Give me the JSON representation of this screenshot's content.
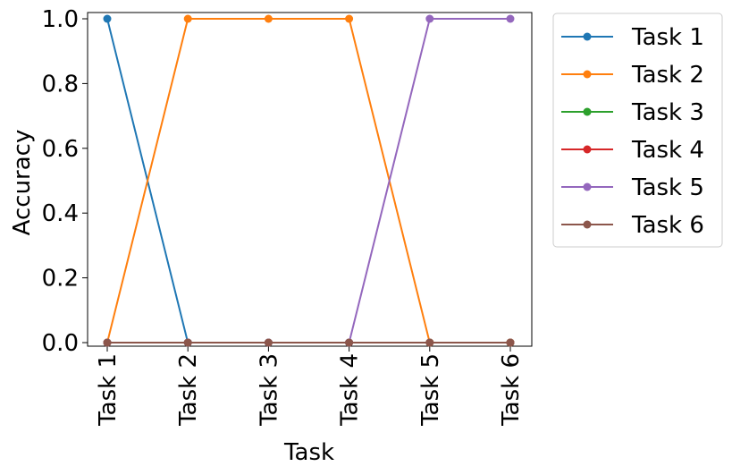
{
  "chart_data": {
    "type": "line",
    "title": "",
    "xlabel": "Task",
    "ylabel": "Accuracy",
    "categories": [
      "Task 1",
      "Task 2",
      "Task 3",
      "Task 4",
      "Task 5",
      "Task 6"
    ],
    "yticks": [
      "0.0",
      "0.2",
      "0.4",
      "0.6",
      "0.8",
      "1.0"
    ],
    "ylim": [
      0,
      1
    ],
    "grid": false,
    "legend_position": "outside-top-right",
    "series": [
      {
        "name": "Task 1",
        "color": "#1f77b4",
        "values": [
          1.0,
          0.0,
          0.0,
          0.0,
          0.0,
          0.0
        ]
      },
      {
        "name": "Task 2",
        "color": "#ff7f0e",
        "values": [
          0.0,
          1.0,
          1.0,
          1.0,
          0.0,
          0.0
        ]
      },
      {
        "name": "Task 3",
        "color": "#2ca02c",
        "values": [
          0.0,
          0.0,
          0.0,
          0.0,
          0.0,
          0.0
        ]
      },
      {
        "name": "Task 4",
        "color": "#d62728",
        "values": [
          0.0,
          0.0,
          0.0,
          0.0,
          0.0,
          0.0
        ]
      },
      {
        "name": "Task 5",
        "color": "#9467bd",
        "values": [
          0.0,
          0.0,
          0.0,
          0.0,
          1.0,
          1.0
        ]
      },
      {
        "name": "Task 6",
        "color": "#8c564b",
        "values": [
          0.0,
          0.0,
          0.0,
          0.0,
          0.0,
          0.0
        ]
      }
    ]
  }
}
